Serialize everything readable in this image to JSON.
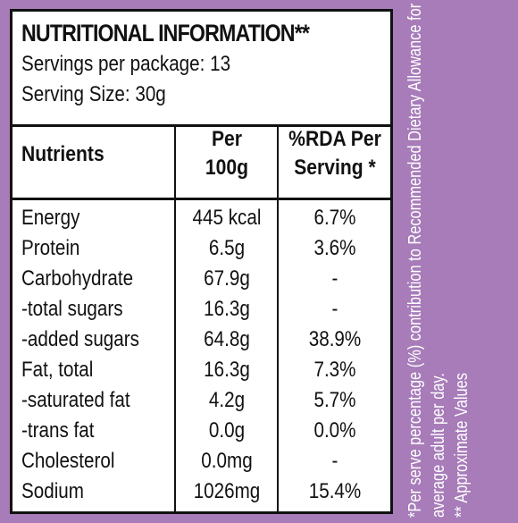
{
  "header": {
    "title": "NUTRITIONAL INFORMATION**",
    "servings": "Servings per package: 13",
    "serving_size": "Serving Size: 30g"
  },
  "table": {
    "columns": [
      "Nutrients",
      "Per 100g",
      "%RDA Per Serving *"
    ],
    "col_per_line1": "Per",
    "col_per_line2": "100g",
    "col_rda_line1": "%RDA Per",
    "col_rda_line2": "Serving *",
    "rows": [
      {
        "nutrient": "Energy",
        "per100": "445 kcal",
        "rda": "6.7%"
      },
      {
        "nutrient": "Protein",
        "per100": "6.5g",
        "rda": "3.6%"
      },
      {
        "nutrient": "Carbohydrate",
        "per100": "67.9g",
        "rda": "-"
      },
      {
        "nutrient": "-total sugars",
        "per100": "16.3g",
        "rda": "-"
      },
      {
        "nutrient": "-added sugars",
        "per100": "64.8g",
        "rda": "38.9%"
      },
      {
        "nutrient": "Fat, total",
        "per100": "16.3g",
        "rda": "7.3%"
      },
      {
        "nutrient": "-saturated fat",
        "per100": "4.2g",
        "rda": "5.7%"
      },
      {
        "nutrient": "-trans fat",
        "per100": "0.0g",
        "rda": "0.0%"
      },
      {
        "nutrient": "Cholesterol",
        "per100": "0.0mg",
        "rda": "-"
      },
      {
        "nutrient": "Sodium",
        "per100": "1026mg",
        "rda": "15.4%"
      }
    ]
  },
  "footnotes": {
    "line1": "*Per serve percentage (%) contribution to Recommended  Dietary Allowance for",
    "line2": "average adult per day.",
    "line3": "** Approximate Values"
  },
  "colors": {
    "background": "#a77cb9",
    "panel": "#ffffff",
    "text": "#111111"
  }
}
